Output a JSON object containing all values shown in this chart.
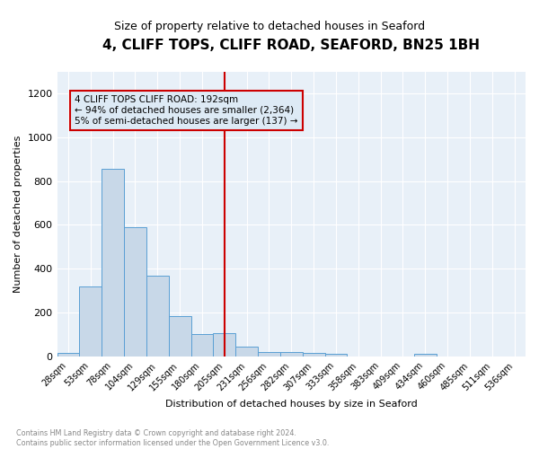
{
  "title": "4, CLIFF TOPS, CLIFF ROAD, SEAFORD, BN25 1BH",
  "subtitle": "Size of property relative to detached houses in Seaford",
  "xlabel": "Distribution of detached houses by size in Seaford",
  "ylabel": "Number of detached properties",
  "bar_labels": [
    "28sqm",
    "53sqm",
    "78sqm",
    "104sqm",
    "129sqm",
    "155sqm",
    "180sqm",
    "205sqm",
    "231sqm",
    "256sqm",
    "282sqm",
    "307sqm",
    "333sqm",
    "358sqm",
    "383sqm",
    "409sqm",
    "434sqm",
    "460sqm",
    "485sqm",
    "511sqm",
    "536sqm"
  ],
  "bar_values": [
    15,
    320,
    855,
    590,
    370,
    185,
    100,
    105,
    45,
    20,
    18,
    17,
    10,
    0,
    0,
    0,
    12,
    0,
    0,
    0,
    0
  ],
  "bar_color": "#c8d8e8",
  "bar_edge_color": "#5a9fd4",
  "vline_x": 7.0,
  "vline_color": "#cc0000",
  "annotation_text": "4 CLIFF TOPS CLIFF ROAD: 192sqm\n← 94% of detached houses are smaller (2,364)\n5% of semi-detached houses are larger (137) →",
  "annotation_box_color": "#ddeaf5",
  "annotation_box_edge_color": "#cc0000",
  "ylim": [
    0,
    1300
  ],
  "yticks": [
    0,
    200,
    400,
    600,
    800,
    1000,
    1200
  ],
  "footer_text": "Contains HM Land Registry data © Crown copyright and database right 2024.\nContains public sector information licensed under the Open Government Licence v3.0.",
  "background_color": "#e8f0f8",
  "grid_color": "#ffffff",
  "title_fontsize": 11,
  "subtitle_fontsize": 9,
  "ylabel_fontsize": 8,
  "xlabel_fontsize": 8,
  "tick_fontsize": 7,
  "annotation_fontsize": 7.5
}
